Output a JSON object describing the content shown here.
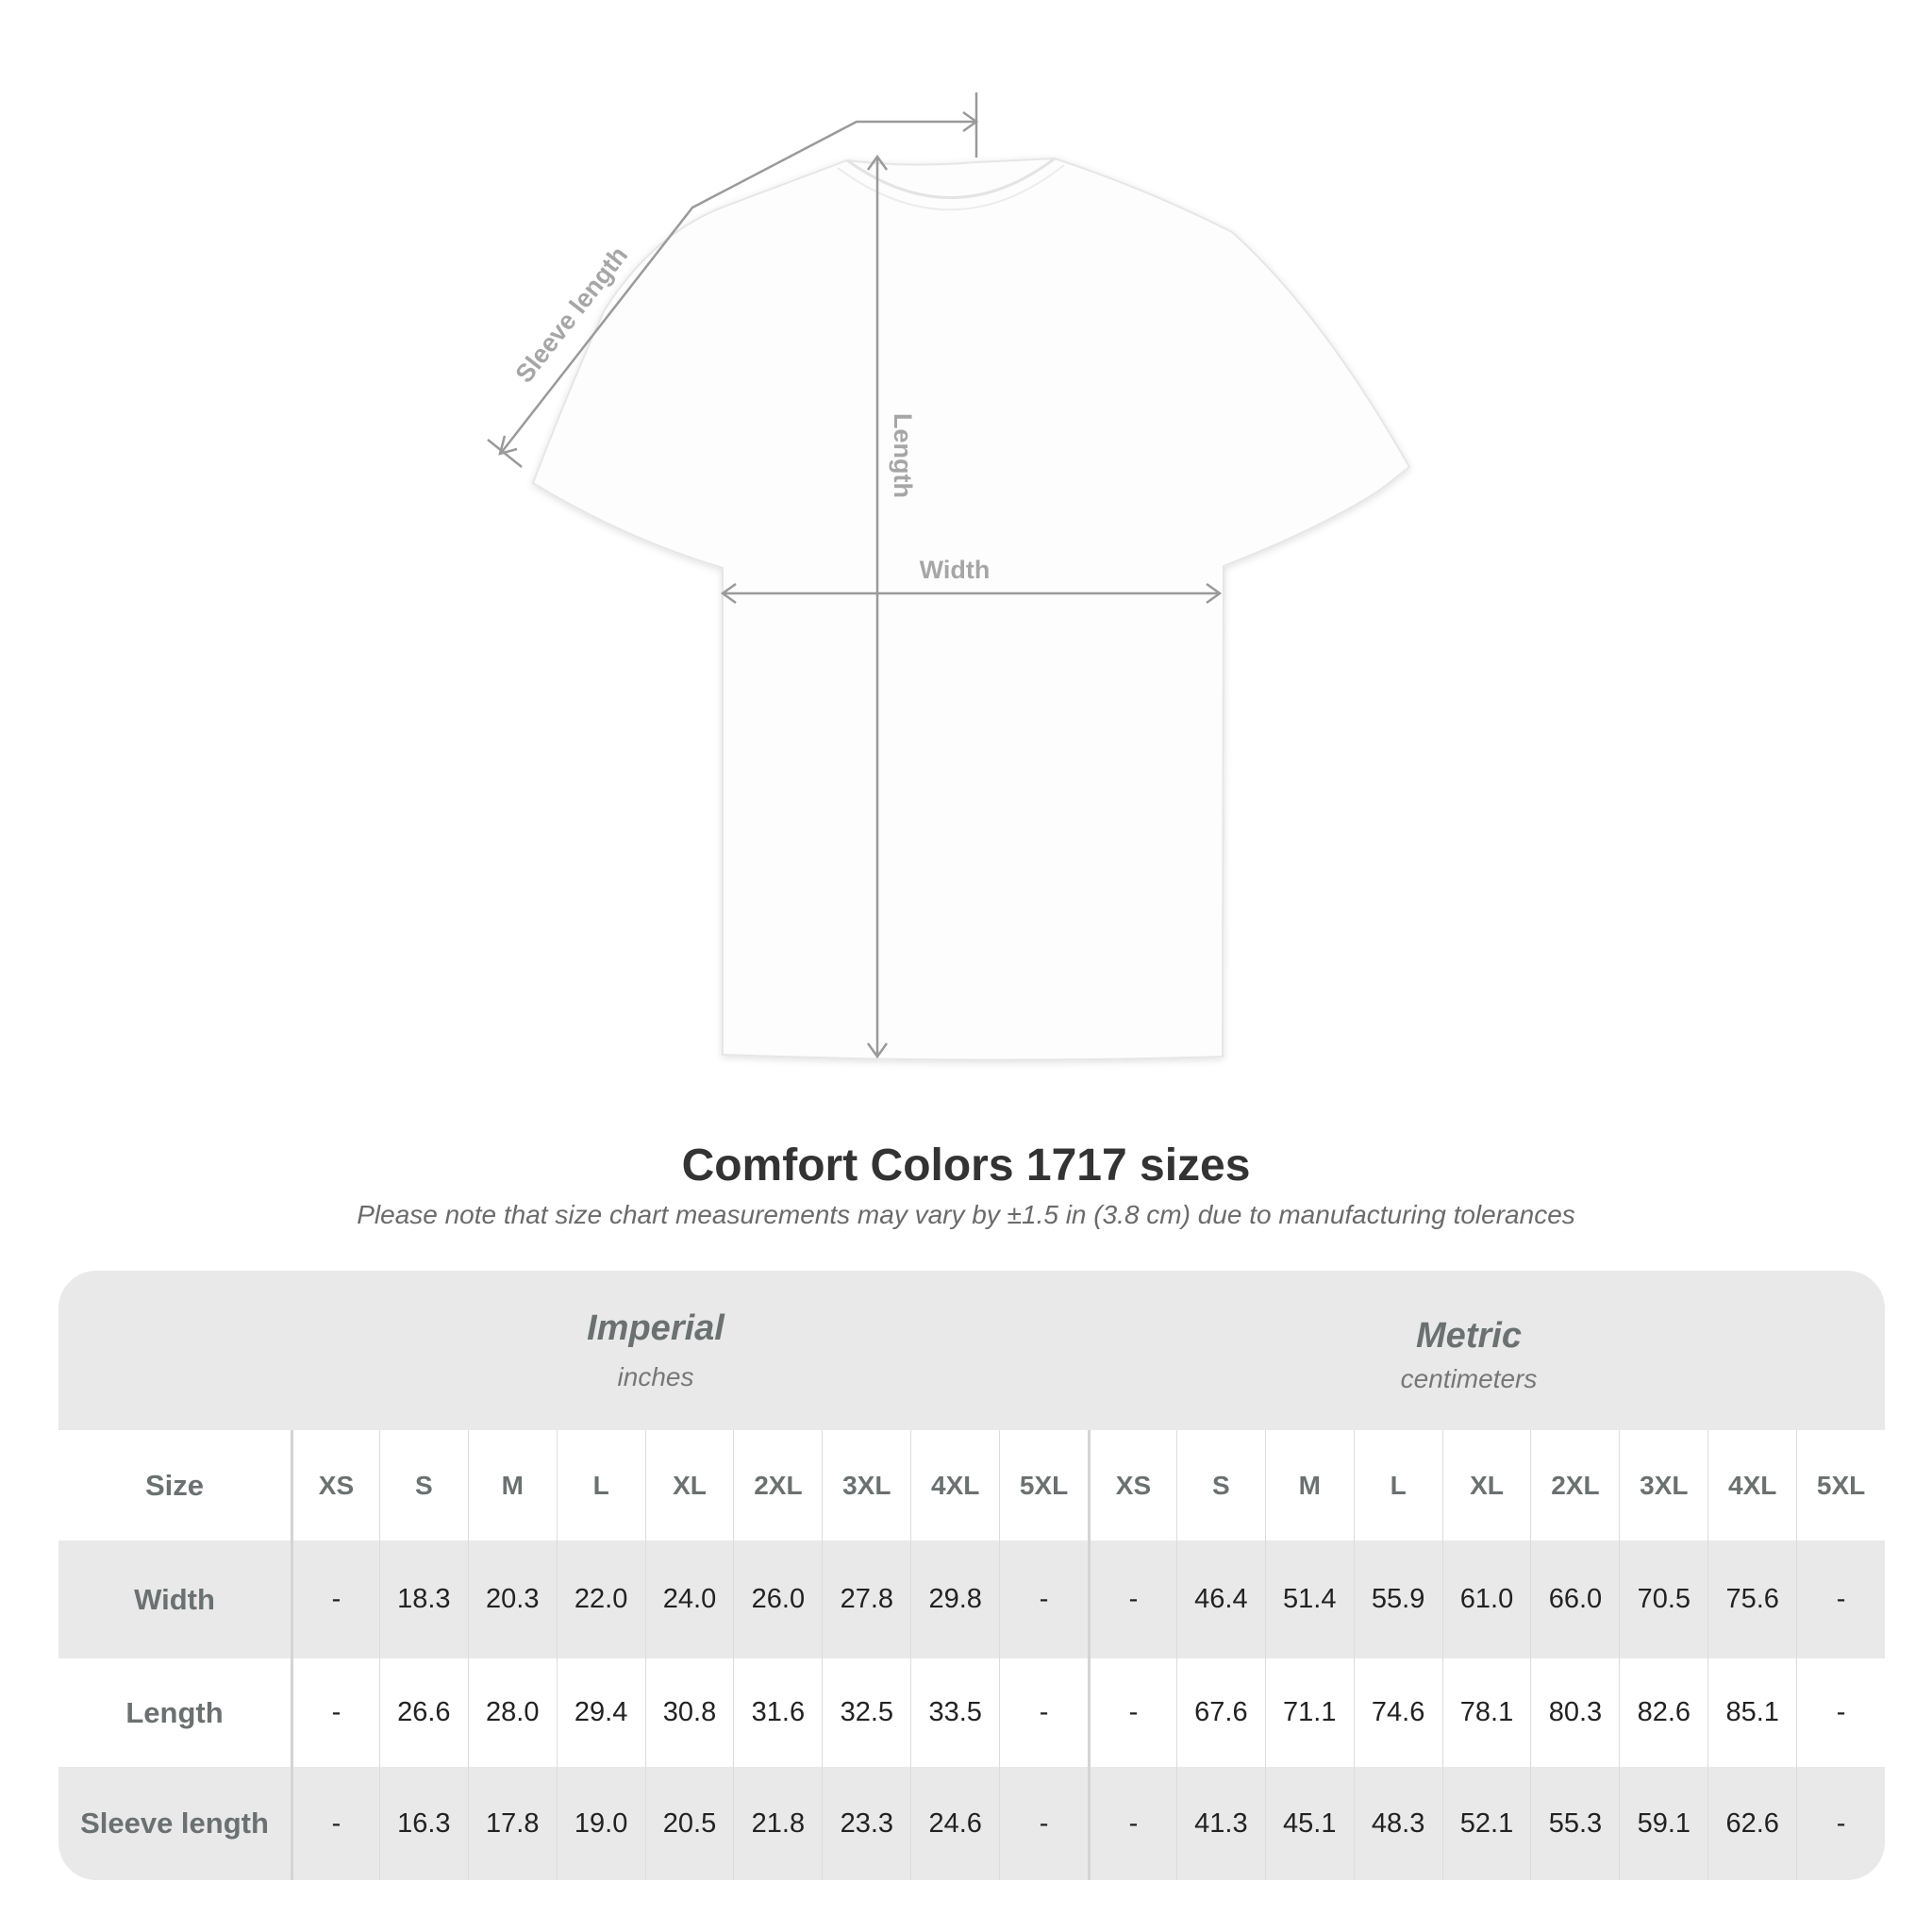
{
  "diagram": {
    "labels": {
      "sleeve": "Sleeve length",
      "length": "Length",
      "width": "Width"
    },
    "line_color": "#9a9a9a"
  },
  "title": "Comfort Colors 1717 sizes",
  "note": "Please note that size chart measurements may vary by ±1.5 in (3.8 cm) due to manufacturing tolerances",
  "table": {
    "imperial": {
      "name": "Imperial",
      "unit": "inches"
    },
    "metric": {
      "name": "Metric",
      "unit": "centimeters"
    },
    "size_label": "Size",
    "sizes": [
      "XS",
      "S",
      "M",
      "L",
      "XL",
      "2XL",
      "3XL",
      "4XL",
      "5XL"
    ],
    "rows": [
      {
        "label": "Width",
        "imperial": [
          "-",
          "18.3",
          "20.3",
          "22.0",
          "24.0",
          "26.0",
          "27.8",
          "29.8",
          "-"
        ],
        "metric": [
          "-",
          "46.4",
          "51.4",
          "55.9",
          "61.0",
          "66.0",
          "70.5",
          "75.6",
          "-"
        ]
      },
      {
        "label": "Length",
        "imperial": [
          "-",
          "26.6",
          "28.0",
          "29.4",
          "30.8",
          "31.6",
          "32.5",
          "33.5",
          "-"
        ],
        "metric": [
          "-",
          "67.6",
          "71.1",
          "74.6",
          "78.1",
          "80.3",
          "82.6",
          "85.1",
          "-"
        ]
      },
      {
        "label": "Sleeve length",
        "imperial": [
          "-",
          "16.3",
          "17.8",
          "19.0",
          "20.5",
          "21.8",
          "23.3",
          "24.6",
          "-"
        ],
        "metric": [
          "-",
          "41.3",
          "45.1",
          "48.3",
          "52.1",
          "55.3",
          "59.1",
          "62.6",
          "-"
        ]
      }
    ],
    "colors": {
      "band": "#e9e9e9",
      "label": "#6b7070",
      "value": "#222222"
    }
  }
}
